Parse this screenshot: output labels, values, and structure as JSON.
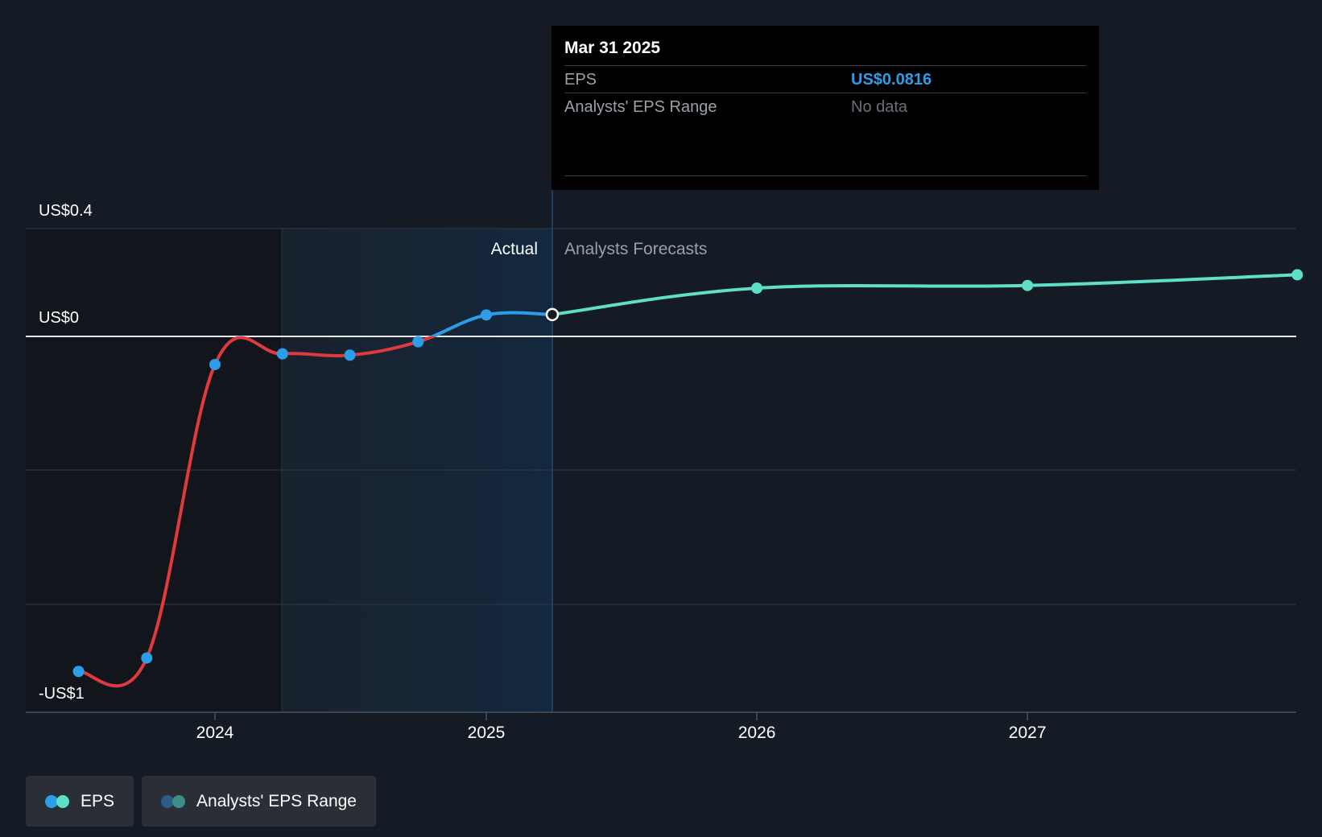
{
  "chart_data": {
    "type": "line",
    "y_labels": [
      "US$0.4",
      "US$0",
      "-US$1"
    ],
    "x_ticks": [
      "2024",
      "2025",
      "2026",
      "2027"
    ],
    "regions": {
      "actual_label": "Actual",
      "forecast_label": "Analysts Forecasts"
    },
    "series": [
      {
        "name": "EPS",
        "kind": "actual",
        "points": [
          {
            "x": "2023-07-01",
            "y": -1.25
          },
          {
            "x": "2023-10-01",
            "y": -1.2
          },
          {
            "x": "2024-01-01",
            "y": -0.105
          },
          {
            "x": "2024-04-01",
            "y": -0.065
          },
          {
            "x": "2024-07-01",
            "y": -0.07
          },
          {
            "x": "2024-10-01",
            "y": -0.02
          },
          {
            "x": "2025-01-01",
            "y": 0.08
          },
          {
            "x": "2025-03-31",
            "y": 0.0816
          }
        ]
      },
      {
        "name": "EPS",
        "kind": "forecast",
        "points": [
          {
            "x": "2025-03-31",
            "y": 0.0816
          },
          {
            "x": "2026-01-01",
            "y": 0.18
          },
          {
            "x": "2027-01-01",
            "y": 0.19
          },
          {
            "x": "2027-12-31",
            "y": 0.23
          }
        ]
      }
    ],
    "colors": {
      "negative": "#e0393e",
      "actual": "#2c9ee8",
      "forecast": "#5ddfc8",
      "baseline": "#ffffff",
      "grid": "#2e3540"
    }
  },
  "tooltip": {
    "date": "Mar 31 2025",
    "rows": [
      {
        "label": "EPS",
        "value": "US$0.0816"
      },
      {
        "label": "Analysts' EPS Range",
        "value": "No data"
      }
    ]
  },
  "legend": [
    {
      "label": "EPS",
      "colors": [
        "#2c9ee8",
        "#5ddfc8"
      ]
    },
    {
      "label": "Analysts' EPS Range",
      "colors": [
        "#2a5d88",
        "#3e8f88"
      ]
    }
  ]
}
